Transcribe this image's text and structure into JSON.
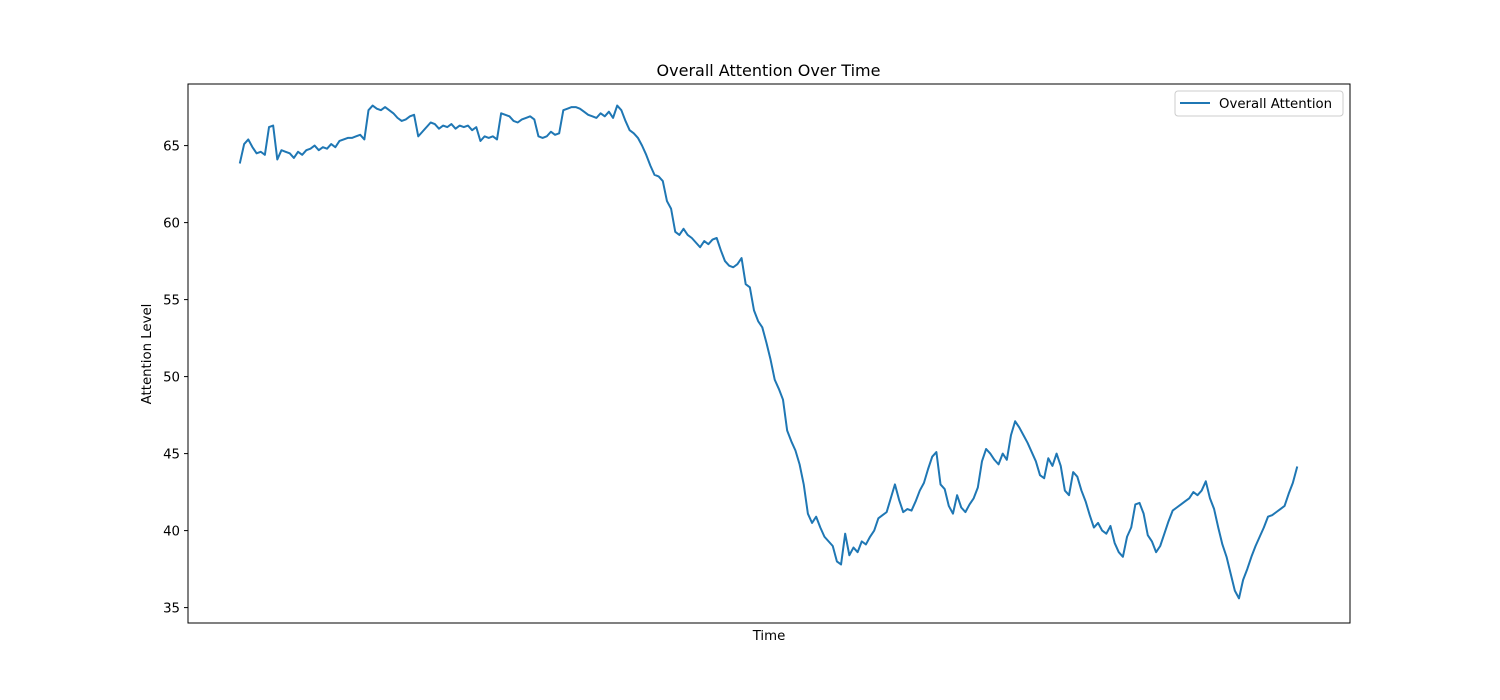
{
  "chart_data": {
    "type": "line",
    "title": "Overall Attention Over Time",
    "xlabel": "Time",
    "ylabel": "Attention Level",
    "ylim": [
      34,
      69
    ],
    "yticks": [
      35,
      40,
      45,
      50,
      55,
      60,
      65
    ],
    "ytick_labels": [
      "35",
      "40",
      "45",
      "50",
      "55",
      "60",
      "65"
    ],
    "xticks_shown": false,
    "grid": false,
    "legend_position": "top-right",
    "series": [
      {
        "name": "Overall Attention",
        "color": "#1f77b4",
        "values": [
          63.9,
          65.1,
          65.4,
          64.9,
          64.5,
          64.6,
          64.4,
          66.2,
          66.3,
          64.1,
          64.7,
          64.6,
          64.5,
          64.2,
          64.6,
          64.4,
          64.7,
          64.8,
          65.0,
          64.7,
          64.9,
          64.8,
          65.1,
          64.9,
          65.3,
          65.4,
          65.5,
          65.5,
          65.6,
          65.7,
          65.4,
          67.3,
          67.6,
          67.4,
          67.3,
          67.5,
          67.3,
          67.1,
          66.8,
          66.6,
          66.7,
          66.9,
          67.0,
          65.6,
          65.9,
          66.2,
          66.5,
          66.4,
          66.1,
          66.3,
          66.2,
          66.4,
          66.1,
          66.3,
          66.2,
          66.3,
          66.0,
          66.2,
          65.3,
          65.6,
          65.5,
          65.6,
          65.4,
          67.1,
          67.0,
          66.9,
          66.6,
          66.5,
          66.7,
          66.8,
          66.9,
          66.7,
          65.6,
          65.5,
          65.6,
          65.9,
          65.7,
          65.8,
          67.3,
          67.4,
          67.5,
          67.5,
          67.4,
          67.2,
          67.0,
          66.9,
          66.8,
          67.1,
          66.9,
          67.2,
          66.8,
          67.6,
          67.3,
          66.6,
          66.0,
          65.8,
          65.5,
          65.0,
          64.4,
          63.7,
          63.1,
          63.0,
          62.7,
          61.4,
          60.9,
          59.4,
          59.2,
          59.6,
          59.2,
          59.0,
          58.7,
          58.4,
          58.8,
          58.6,
          58.9,
          59.0,
          58.2,
          57.5,
          57.2,
          57.1,
          57.3,
          57.7,
          56.0,
          55.8,
          54.3,
          53.6,
          53.2,
          52.2,
          51.1,
          49.8,
          49.2,
          48.5,
          46.5,
          45.8,
          45.2,
          44.3,
          43.0,
          41.1,
          40.5,
          40.9,
          40.2,
          39.6,
          39.3,
          39.0,
          38.0,
          37.8,
          39.8,
          38.4,
          38.9,
          38.6,
          39.3,
          39.1,
          39.6,
          40.0,
          40.8,
          41.0,
          41.2,
          42.1,
          43.0,
          42.0,
          41.2,
          41.4,
          41.3,
          41.9,
          42.6,
          43.1,
          44.0,
          44.8,
          45.1,
          43.0,
          42.7,
          41.6,
          41.1,
          42.3,
          41.5,
          41.2,
          41.7,
          42.1,
          42.8,
          44.5,
          45.3,
          45.0,
          44.6,
          44.3,
          45.0,
          44.6,
          46.2,
          47.1,
          46.7,
          46.2,
          45.7,
          45.1,
          44.5,
          43.6,
          43.4,
          44.7,
          44.2,
          45.0,
          44.2,
          42.6,
          42.3,
          43.8,
          43.5,
          42.6,
          41.9,
          41.0,
          40.2,
          40.5,
          40.0,
          39.8,
          40.3,
          39.2,
          38.6,
          38.3,
          39.6,
          40.2,
          41.7,
          41.8,
          41.1,
          39.7,
          39.3,
          38.6,
          39.0,
          39.8,
          40.6,
          41.3,
          41.5,
          41.7,
          41.9,
          42.1,
          42.5,
          42.3,
          42.6,
          43.2,
          42.1,
          41.4,
          40.2,
          39.1,
          38.3,
          37.2,
          36.1,
          35.6,
          36.8,
          37.5,
          38.3,
          39.0,
          39.6,
          40.2,
          40.9,
          41.0,
          41.2,
          41.4,
          41.6,
          42.4,
          43.1,
          44.1
        ]
      }
    ]
  }
}
